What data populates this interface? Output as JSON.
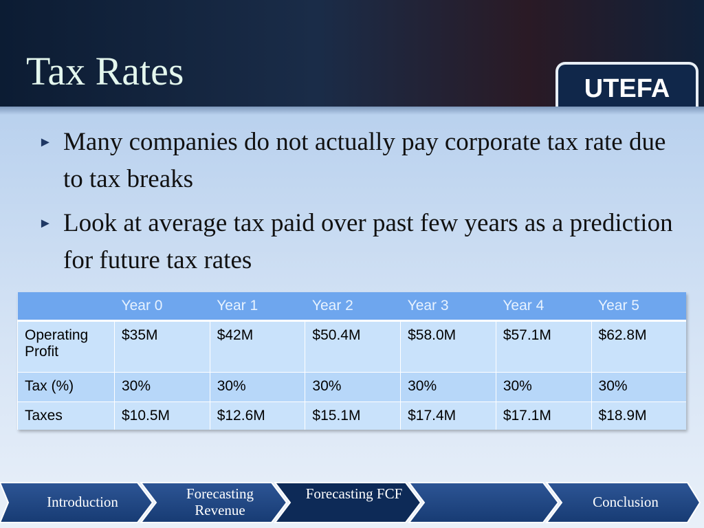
{
  "header": {
    "title": "Tax Rates",
    "logo": "UTEFA"
  },
  "bullets": [
    "Many companies do not actually pay corporate tax rate due to tax breaks",
    "Look at average tax paid over past few years as a prediction for future tax rates"
  ],
  "table": {
    "columns": [
      "Year 0",
      "Year 1",
      "Year 2",
      "Year 3",
      "Year 4",
      "Year 5"
    ],
    "rows": [
      [
        "Operating Profit",
        "$35M",
        "$42M",
        "$50.4M",
        "$58.0M",
        "$57.1M",
        "$62.8M"
      ],
      [
        "Tax (%)",
        "30%",
        "30%",
        "30%",
        "30%",
        "30%",
        "30%"
      ],
      [
        "Taxes",
        "$10.5M",
        "$12.6M",
        "$15.1M",
        "$17.4M",
        "$17.1M",
        "$18.9M"
      ]
    ]
  },
  "nav": [
    "Introduction",
    "Forecasting Revenue",
    "Forecasting FCF",
    "Conclusion"
  ]
}
